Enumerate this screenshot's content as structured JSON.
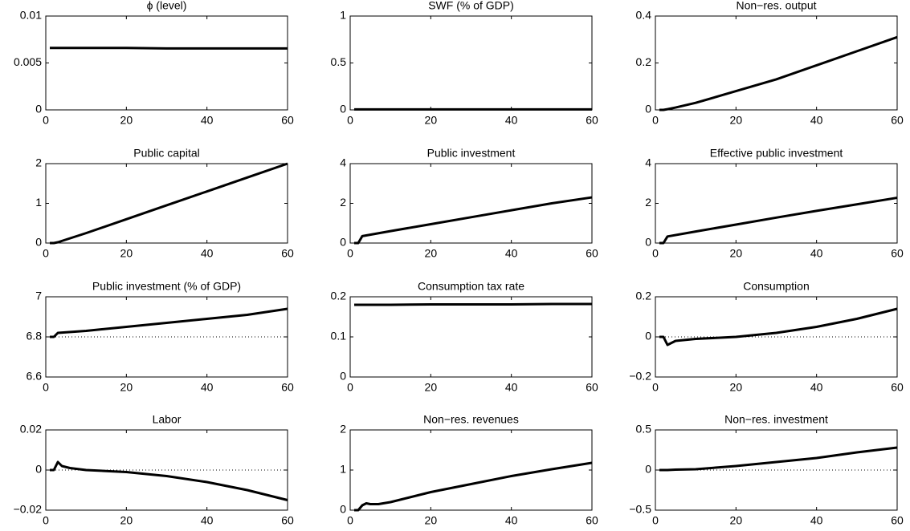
{
  "chart_data": [
    {
      "type": "line",
      "title": "ϕ (level)",
      "x": [
        1,
        2,
        3,
        5,
        10,
        20,
        30,
        40,
        50,
        60
      ],
      "values": [
        0.0066,
        0.0066,
        0.0066,
        0.0066,
        0.0066,
        0.0066,
        0.00655,
        0.00655,
        0.00655,
        0.00655
      ],
      "color": "#000000",
      "xlim": [
        0,
        60
      ],
      "xticks": [
        0,
        20,
        40,
        60
      ],
      "ylim": [
        0,
        0.01
      ],
      "yticks": [
        0,
        0.005,
        0.01
      ]
    },
    {
      "type": "line",
      "title": "SWF (% of GDP)",
      "x": [
        1,
        2,
        3,
        5,
        10,
        20,
        30,
        40,
        50,
        60
      ],
      "values": [
        0.005,
        0.005,
        0.005,
        0.005,
        0.005,
        0.005,
        0.005,
        0.005,
        0.005,
        0.005
      ],
      "color": "#000000",
      "xlim": [
        0,
        60
      ],
      "xticks": [
        0,
        20,
        40,
        60
      ],
      "ylim": [
        0,
        1
      ],
      "yticks": [
        0,
        0.5,
        1
      ]
    },
    {
      "type": "line",
      "title": "Non−res. output",
      "x": [
        1,
        2,
        3,
        5,
        10,
        20,
        30,
        40,
        50,
        60
      ],
      "values": [
        0,
        0,
        0.003,
        0.01,
        0.03,
        0.08,
        0.13,
        0.19,
        0.25,
        0.31
      ],
      "color": "#000000",
      "xlim": [
        0,
        60
      ],
      "xticks": [
        0,
        20,
        40,
        60
      ],
      "ylim": [
        0,
        0.4
      ],
      "yticks": [
        0,
        0.2,
        0.4
      ]
    },
    {
      "type": "line",
      "title": "Public capital",
      "x": [
        1,
        2,
        3,
        10,
        20,
        30,
        40,
        50,
        60
      ],
      "values": [
        0,
        0,
        0.02,
        0.25,
        0.6,
        0.95,
        1.3,
        1.65,
        2.0
      ],
      "color": "#000000",
      "xlim": [
        0,
        60
      ],
      "xticks": [
        0,
        20,
        40,
        60
      ],
      "ylim": [
        0,
        2
      ],
      "yticks": [
        0,
        1,
        2
      ]
    },
    {
      "type": "line",
      "title": "Public investment",
      "x": [
        1,
        2,
        3,
        10,
        20,
        30,
        40,
        50,
        60
      ],
      "values": [
        0,
        0,
        0.35,
        0.6,
        0.95,
        1.3,
        1.65,
        2.0,
        2.3
      ],
      "color": "#000000",
      "xlim": [
        0,
        60
      ],
      "xticks": [
        0,
        20,
        40,
        60
      ],
      "ylim": [
        0,
        4
      ],
      "yticks": [
        0,
        2,
        4
      ]
    },
    {
      "type": "line",
      "title": "Effective public investment",
      "x": [
        1,
        2,
        3,
        10,
        20,
        30,
        40,
        50,
        60
      ],
      "values": [
        0,
        0,
        0.33,
        0.58,
        0.93,
        1.28,
        1.62,
        1.95,
        2.28
      ],
      "color": "#000000",
      "xlim": [
        0,
        60
      ],
      "xticks": [
        0,
        20,
        40,
        60
      ],
      "ylim": [
        0,
        4
      ],
      "yticks": [
        0,
        2,
        4
      ]
    },
    {
      "type": "line",
      "title": "Public investment (% of GDP)",
      "x": [
        1,
        2,
        3,
        10,
        20,
        30,
        40,
        50,
        60
      ],
      "values": [
        6.8,
        6.8,
        6.82,
        6.83,
        6.85,
        6.87,
        6.89,
        6.91,
        6.94
      ],
      "color": "#000000",
      "reference_line": 6.8,
      "xlim": [
        0,
        60
      ],
      "xticks": [
        0,
        20,
        40,
        60
      ],
      "ylim": [
        6.6,
        7
      ],
      "yticks": [
        6.6,
        6.8,
        7
      ]
    },
    {
      "type": "line",
      "title": "Consumption tax rate",
      "x": [
        1,
        2,
        3,
        10,
        20,
        30,
        40,
        50,
        60
      ],
      "values": [
        0.18,
        0.18,
        0.18,
        0.18,
        0.181,
        0.181,
        0.181,
        0.182,
        0.182
      ],
      "color": "#000000",
      "xlim": [
        0,
        60
      ],
      "xticks": [
        0,
        20,
        40,
        60
      ],
      "ylim": [
        0,
        0.2
      ],
      "yticks": [
        0,
        0.1,
        0.2
      ]
    },
    {
      "type": "line",
      "title": "Consumption",
      "x": [
        1,
        2,
        3,
        5,
        10,
        20,
        30,
        40,
        50,
        60
      ],
      "values": [
        0,
        0,
        -0.04,
        -0.02,
        -0.01,
        0,
        0.02,
        0.05,
        0.09,
        0.14
      ],
      "color": "#000000",
      "reference_line": 0,
      "xlim": [
        0,
        60
      ],
      "xticks": [
        0,
        20,
        40,
        60
      ],
      "ylim": [
        -0.2,
        0.2
      ],
      "yticks": [
        {
          "value": -0.2,
          "label": "−0.2"
        },
        0,
        0.2
      ]
    },
    {
      "type": "line",
      "title": "Labor",
      "x": [
        1,
        2,
        3,
        4,
        6,
        10,
        20,
        30,
        40,
        50,
        60
      ],
      "values": [
        0,
        0,
        0.004,
        0.002,
        0.001,
        0,
        -0.001,
        -0.003,
        -0.006,
        -0.01,
        -0.015
      ],
      "color": "#000000",
      "reference_line": 0,
      "xlim": [
        0,
        60
      ],
      "xticks": [
        0,
        20,
        40,
        60
      ],
      "ylim": [
        -0.02,
        0.02
      ],
      "yticks": [
        {
          "value": -0.02,
          "label": "−0.02"
        },
        0,
        0.02
      ]
    },
    {
      "type": "line",
      "title": "Non−res. revenues",
      "x": [
        1,
        2,
        3,
        4,
        5,
        7,
        10,
        20,
        30,
        40,
        50,
        60
      ],
      "values": [
        0,
        0,
        0.12,
        0.17,
        0.15,
        0.15,
        0.2,
        0.45,
        0.65,
        0.85,
        1.02,
        1.18
      ],
      "color": "#000000",
      "xlim": [
        0,
        60
      ],
      "xticks": [
        0,
        20,
        40,
        60
      ],
      "ylim": [
        0,
        2
      ],
      "yticks": [
        0,
        1,
        2
      ]
    },
    {
      "type": "line",
      "title": "Non−res. investment",
      "x": [
        1,
        2,
        3,
        5,
        10,
        20,
        30,
        40,
        50,
        60
      ],
      "values": [
        0,
        0,
        0,
        0.005,
        0.01,
        0.05,
        0.1,
        0.15,
        0.22,
        0.28
      ],
      "color": "#000000",
      "reference_line": 0,
      "xlim": [
        0,
        60
      ],
      "xticks": [
        0,
        20,
        40,
        60
      ],
      "ylim": [
        -0.5,
        0.5
      ],
      "yticks": [
        {
          "value": -0.5,
          "label": "−0.5"
        },
        0,
        0.5
      ]
    }
  ]
}
